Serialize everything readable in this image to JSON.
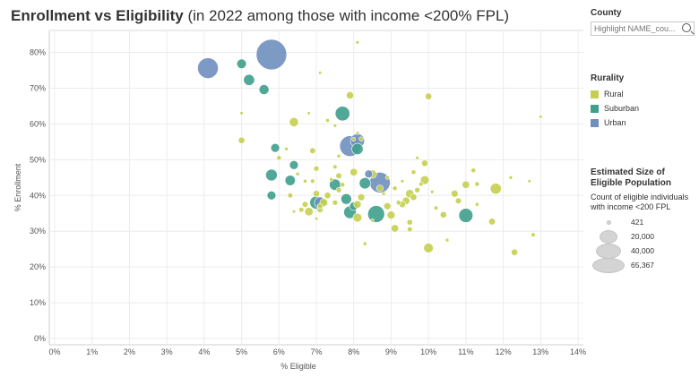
{
  "title": {
    "main": "Enrollment vs Eligibility",
    "sub": "(in 2022 among those with income <200% FPL)"
  },
  "county_filter": {
    "title": "County",
    "placeholder": "Highlight NAME_cou..."
  },
  "rurality_legend": {
    "title": "Rurality",
    "items": [
      {
        "label": "Rural",
        "color": "#c5cf4f"
      },
      {
        "label": "Suburban",
        "color": "#3f9e8c"
      },
      {
        "label": "Urban",
        "color": "#6f8fbf"
      }
    ]
  },
  "size_legend": {
    "title": "Estimated Size of Eligible Population",
    "description": "Count of eligible individuals with income <200 FPL",
    "entries": [
      {
        "label": "421",
        "value": 421
      },
      {
        "label": "20,000",
        "value": 20000
      },
      {
        "label": "40,000",
        "value": 40000
      },
      {
        "label": "65,367",
        "value": 65367
      }
    ]
  },
  "chart_data": {
    "type": "scatter",
    "xlabel": "% Eligible",
    "ylabel": "% Enrollment",
    "xlim": [
      0,
      14
    ],
    "ylim": [
      0,
      85
    ],
    "x_ticks": [
      "0%",
      "1%",
      "2%",
      "3%",
      "4%",
      "5%",
      "6%",
      "7%",
      "8%",
      "9%",
      "10%",
      "11%",
      "12%",
      "13%",
      "14%"
    ],
    "y_ticks": [
      {
        "value": 0,
        "label": "0%"
      },
      {
        "value": 10,
        "label": "10%"
      },
      {
        "value": 20,
        "label": "20%"
      },
      {
        "value": 30,
        "label": "30%"
      },
      {
        "value": 40,
        "label": "40%"
      },
      {
        "value": 50,
        "label": "50%"
      },
      {
        "value": 60,
        "label": "60%"
      },
      {
        "value": 70,
        "label": "70%"
      },
      {
        "value": 80,
        "label": "80%"
      }
    ],
    "grid": true,
    "legend": "right",
    "series": [
      {
        "name": "Rural",
        "color": "#c5cf4f",
        "points": [
          [
            8.1,
            82.8,
            800
          ],
          [
            7.1,
            74.3,
            500
          ],
          [
            7.9,
            68.0,
            3800
          ],
          [
            10.0,
            67.7,
            3000
          ],
          [
            5.0,
            63.0,
            600
          ],
          [
            6.4,
            60.5,
            6000
          ],
          [
            6.8,
            63.0,
            500
          ],
          [
            7.3,
            61.0,
            1000
          ],
          [
            7.5,
            59.5,
            800
          ],
          [
            8.1,
            57.5,
            600
          ],
          [
            8.0,
            55.7,
            1000
          ],
          [
            8.2,
            55.8,
            1200
          ],
          [
            5.0,
            55.4,
            3000
          ],
          [
            13.0,
            62.0,
            400
          ],
          [
            6.2,
            53.0,
            900
          ],
          [
            6.9,
            52.5,
            2500
          ],
          [
            7.6,
            51.0,
            1000
          ],
          [
            6.0,
            50.5,
            1500
          ],
          [
            7.0,
            47.5,
            2000
          ],
          [
            7.5,
            48.0,
            1300
          ],
          [
            6.5,
            46.0,
            1000
          ],
          [
            7.6,
            45.5,
            2500
          ],
          [
            8.0,
            46.5,
            4000
          ],
          [
            8.5,
            46.0,
            5000
          ],
          [
            8.9,
            45.0,
            1000
          ],
          [
            9.7,
            50.5,
            800
          ],
          [
            9.9,
            49.0,
            3000
          ],
          [
            9.6,
            46.5,
            1500
          ],
          [
            9.9,
            44.3,
            5500
          ],
          [
            9.8,
            43.2,
            1300
          ],
          [
            9.7,
            41.5,
            2000
          ],
          [
            9.5,
            40.5,
            5000
          ],
          [
            9.6,
            39.5,
            3000
          ],
          [
            10.1,
            41.0,
            800
          ],
          [
            10.7,
            40.5,
            3500
          ],
          [
            11.0,
            43.0,
            4000
          ],
          [
            11.2,
            47.0,
            1500
          ],
          [
            11.3,
            43.2,
            1500
          ],
          [
            12.2,
            45.0,
            900
          ],
          [
            12.7,
            44.0,
            600
          ],
          [
            11.8,
            41.9,
            8500
          ],
          [
            10.8,
            38.5,
            2500
          ],
          [
            11.3,
            37.5,
            1000
          ],
          [
            11.7,
            32.7,
            3200
          ],
          [
            12.3,
            24.1,
            3000
          ],
          [
            12.8,
            29.0,
            1300
          ],
          [
            10.0,
            25.3,
            6500
          ],
          [
            10.4,
            34.6,
            3000
          ],
          [
            10.5,
            27.5,
            900
          ],
          [
            10.2,
            36.5,
            1200
          ],
          [
            9.3,
            37.5,
            3000
          ],
          [
            9.4,
            38.5,
            4000
          ],
          [
            9.0,
            34.5,
            4500
          ],
          [
            8.9,
            37.0,
            3500
          ],
          [
            9.2,
            38.0,
            1600
          ],
          [
            9.5,
            32.5,
            2200
          ],
          [
            9.5,
            30.5,
            1800
          ],
          [
            9.1,
            30.8,
            4000
          ],
          [
            8.2,
            39.5,
            3500
          ],
          [
            8.1,
            37.5,
            4000
          ],
          [
            8.1,
            33.8,
            5500
          ],
          [
            8.3,
            26.5,
            1000
          ],
          [
            8.5,
            33.0,
            700
          ],
          [
            7.5,
            38.0,
            2000
          ],
          [
            7.3,
            40.0,
            3000
          ],
          [
            7.2,
            38.0,
            4500
          ],
          [
            7.0,
            40.5,
            3000
          ],
          [
            7.1,
            36.0,
            2500
          ],
          [
            7.0,
            33.5,
            700
          ],
          [
            6.7,
            37.5,
            2500
          ],
          [
            6.6,
            36.0,
            1700
          ],
          [
            6.8,
            35.5,
            5000
          ],
          [
            6.4,
            35.5,
            600
          ],
          [
            6.3,
            40.0,
            1800
          ],
          [
            6.7,
            44.0,
            1000
          ],
          [
            6.9,
            44.0,
            1300
          ],
          [
            7.1,
            37.0,
            2000
          ],
          [
            7.6,
            41.5,
            2000
          ],
          [
            7.4,
            44.5,
            1000
          ],
          [
            7.7,
            43.0,
            1500
          ],
          [
            8.7,
            42.0,
            3000
          ],
          [
            8.8,
            40.5,
            900
          ],
          [
            9.1,
            42.0,
            1500
          ],
          [
            9.3,
            44.0,
            800
          ]
        ]
      },
      {
        "name": "Suburban",
        "color": "#3f9e8c",
        "points": [
          [
            5.0,
            76.8,
            6500
          ],
          [
            5.2,
            72.3,
            8500
          ],
          [
            5.6,
            69.6,
            7000
          ],
          [
            7.7,
            62.9,
            15000
          ],
          [
            5.9,
            53.3,
            5500
          ],
          [
            8.1,
            53.0,
            9000
          ],
          [
            6.4,
            48.5,
            5500
          ],
          [
            5.8,
            45.7,
            9500
          ],
          [
            6.3,
            44.2,
            7500
          ],
          [
            5.8,
            40.0,
            5500
          ],
          [
            7.0,
            38.0,
            12000
          ],
          [
            7.5,
            43.0,
            9000
          ],
          [
            7.8,
            39.0,
            8000
          ],
          [
            8.0,
            37.0,
            5000
          ],
          [
            7.9,
            35.3,
            11000
          ],
          [
            8.3,
            43.4,
            9000
          ],
          [
            8.6,
            34.8,
            20000
          ],
          [
            11.0,
            34.4,
            14000
          ]
        ]
      },
      {
        "name": "Urban",
        "color": "#6f8fbf",
        "points": [
          [
            4.1,
            75.6,
            30000
          ],
          [
            5.8,
            79.4,
            65367
          ],
          [
            7.9,
            53.8,
            30000
          ],
          [
            8.1,
            55.3,
            14000
          ],
          [
            8.7,
            43.6,
            30000
          ],
          [
            7.1,
            38.0,
            9000
          ],
          [
            8.4,
            46.0,
            4500
          ]
        ]
      }
    ]
  }
}
